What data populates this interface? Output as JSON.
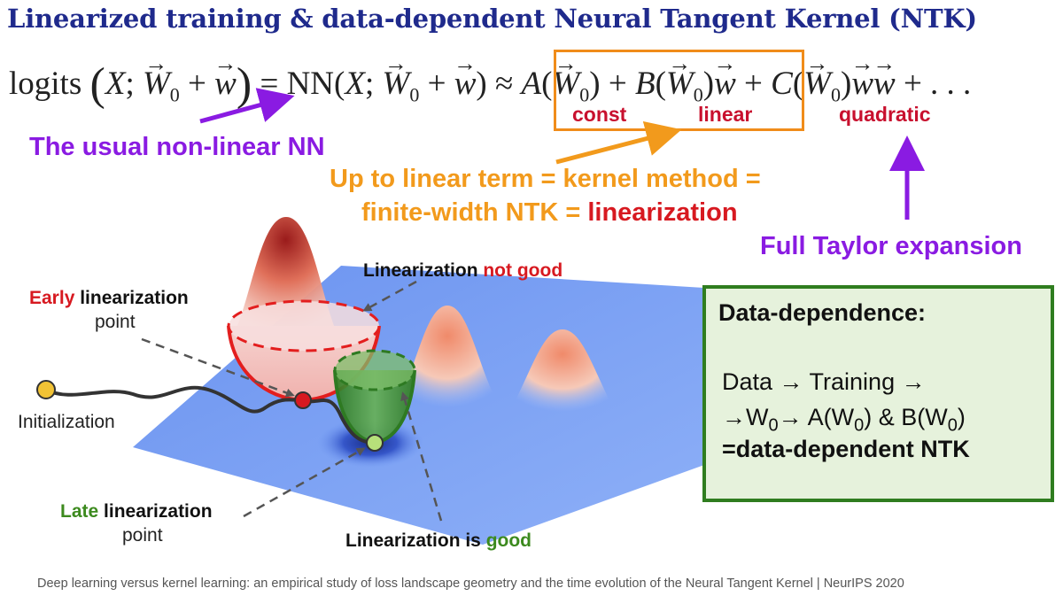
{
  "title": "Linearized training & data-dependent Neural Tangent Kernel (NTK)",
  "equation": {
    "logits": "logits",
    "nn": "NN",
    "x": "X",
    "a": "A",
    "b": "B",
    "c": "C",
    "w0": "W",
    "sub0": "0",
    "w": "w",
    "ellipsis": "+ . . ."
  },
  "labels": {
    "const": "const",
    "linear": "linear",
    "quadratic": "quadratic",
    "usual_nn": "The usual non-linear NN",
    "linear_term_1": "Up to linear term = kernel method =",
    "linear_term_2a": "finite-width NTK = ",
    "linear_term_2b": "linearization",
    "full_taylor": "Full Taylor expansion",
    "not_good_a": "Linearization ",
    "not_good_b": "not good",
    "is_good_a": "Linearization is ",
    "is_good_b": "good",
    "early_a": "Early",
    "early_b": " linearization",
    "early_c": "point",
    "late_a": "Late",
    "late_b": " linearization",
    "late_c": "point",
    "initialization": "Initialization"
  },
  "data_dependence": {
    "heading": "Data-dependence:",
    "line1": "Data → Training →",
    "line2a": "→W",
    "line2_sub1": "0",
    "line2b": "→ A(W",
    "line2_sub2": "0",
    "line2c": ") & B(W",
    "line2_sub3": "0",
    "line2d": ")",
    "line3": "=data-dependent NTK"
  },
  "footer": "Deep learning versus kernel learning: an empirical study of loss landscape geometry and the time evolution of the Neural Tangent Kernel | NeurIPS 2020",
  "colors": {
    "title": "#1f2a8c",
    "purple": "#8a1be2",
    "orange": "#f29a1c",
    "red": "#d71920",
    "green": "#3c8a1e",
    "landscape": "#6f97f2"
  }
}
